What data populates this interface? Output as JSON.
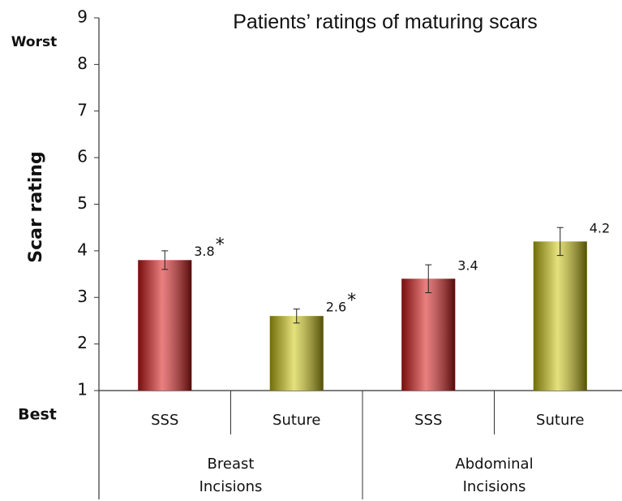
{
  "chart_data": {
    "type": "bar",
    "title": "Patients’ ratings of maturing scars",
    "y_label": "Scar rating",
    "annotations": {
      "top": "Worst",
      "bottom": "Best"
    },
    "categories": [
      "SSS",
      "Suture",
      "SSS",
      "Suture"
    ],
    "groups": [
      {
        "name": "Breast Incisions",
        "size": 2
      },
      {
        "name": "Abdominal Incisions",
        "size": 2
      }
    ],
    "values": [
      3.8,
      2.6,
      3.4,
      4.2
    ],
    "errors": [
      0.2,
      0.15,
      0.3,
      0.3
    ],
    "significance": [
      "*",
      "*",
      null,
      null
    ],
    "colors": [
      "#d81818",
      "#cfc812",
      "#d81818",
      "#cfc812"
    ],
    "ylim": [
      1,
      9
    ],
    "yticks": [
      1,
      2,
      3,
      4,
      5,
      6,
      7,
      8,
      9
    ],
    "grid": false
  }
}
